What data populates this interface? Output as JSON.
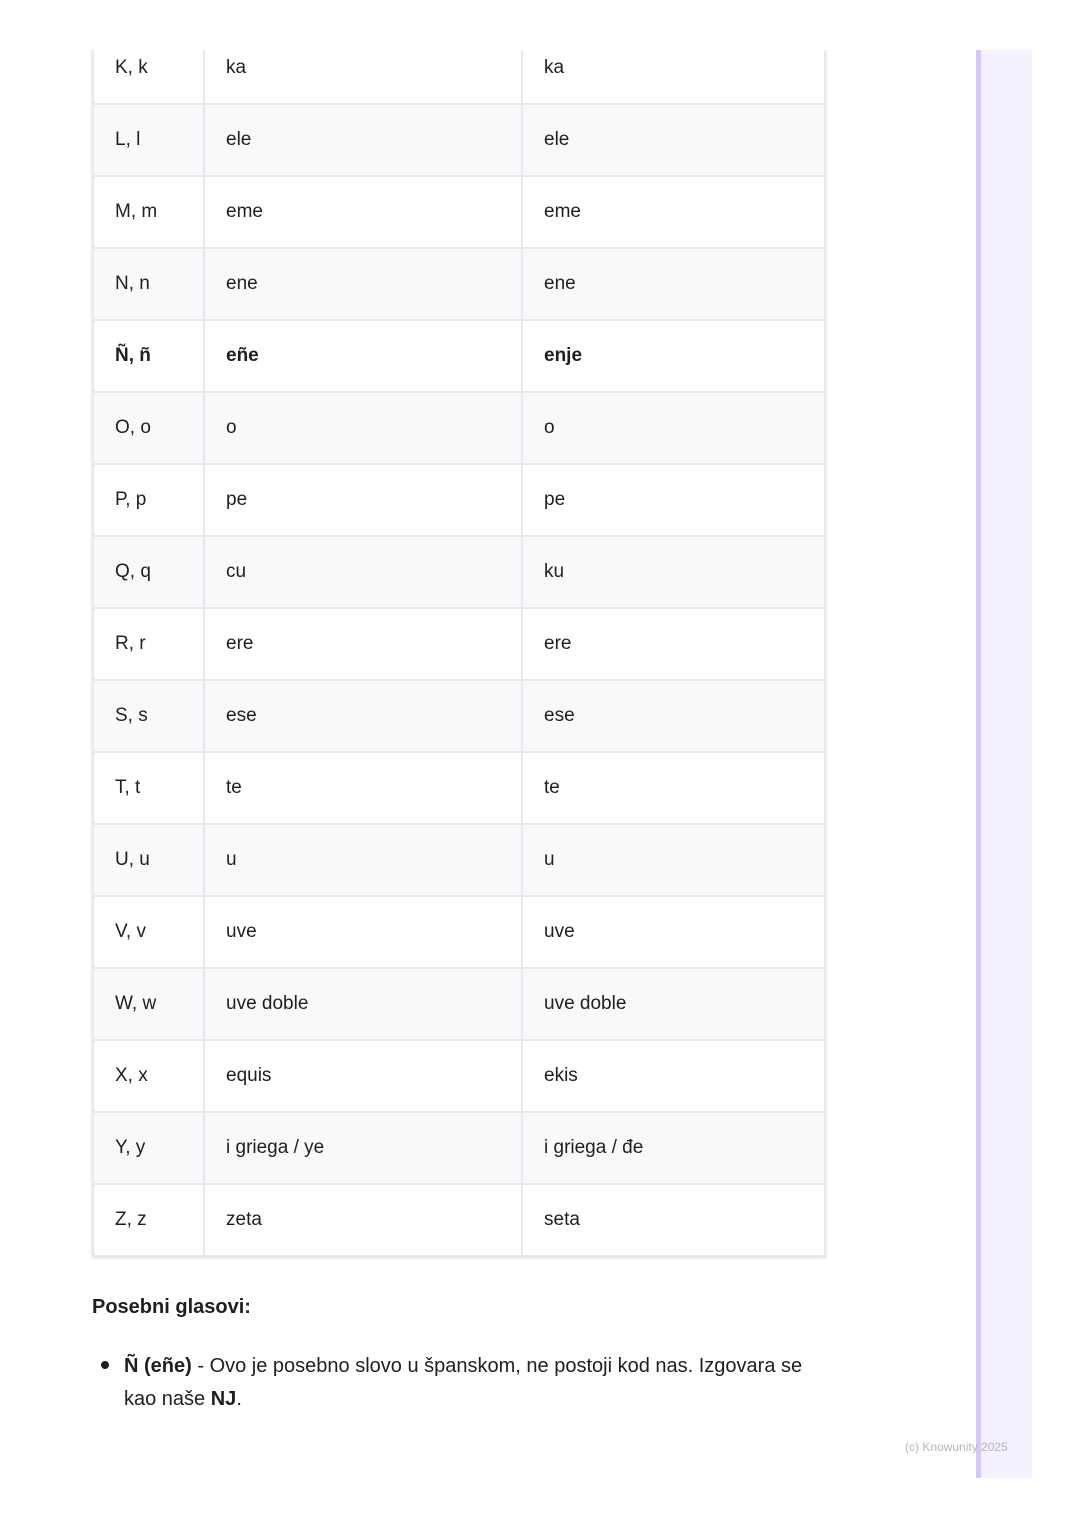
{
  "table": {
    "rows": [
      {
        "letter": "K, k",
        "name": "ka",
        "pron": "ka",
        "bold": false
      },
      {
        "letter": "L, l",
        "name": "ele",
        "pron": "ele",
        "bold": false
      },
      {
        "letter": "M, m",
        "name": "eme",
        "pron": "eme",
        "bold": false
      },
      {
        "letter": "N, n",
        "name": "ene",
        "pron": "ene",
        "bold": false
      },
      {
        "letter": "Ñ, ñ",
        "name": "eñe",
        "pron": "enje",
        "bold": true
      },
      {
        "letter": "O, o",
        "name": "o",
        "pron": "o",
        "bold": false
      },
      {
        "letter": "P, p",
        "name": "pe",
        "pron": "pe",
        "bold": false
      },
      {
        "letter": "Q, q",
        "name": "cu",
        "pron": "ku",
        "bold": false
      },
      {
        "letter": "R, r",
        "name": "ere",
        "pron": "ere",
        "bold": false
      },
      {
        "letter": "S, s",
        "name": "ese",
        "pron": "ese",
        "bold": false
      },
      {
        "letter": "T, t",
        "name": "te",
        "pron": "te",
        "bold": false
      },
      {
        "letter": "U, u",
        "name": "u",
        "pron": "u",
        "bold": false
      },
      {
        "letter": "V, v",
        "name": "uve",
        "pron": "uve",
        "bold": false
      },
      {
        "letter": "W, w",
        "name": "uve doble",
        "pron": "uve doble",
        "bold": false
      },
      {
        "letter": "X, x",
        "name": "equis",
        "pron": "ekis",
        "bold": false
      },
      {
        "letter": "Y, y",
        "name": "i griega / ye",
        "pron": "i griega / đe",
        "bold": false
      },
      {
        "letter": "Z, z",
        "name": "zeta",
        "pron": "seta",
        "bold": false
      }
    ]
  },
  "section": {
    "heading": "Posebni glasovi:",
    "bullet": {
      "term": "Ñ (eñe)",
      "text1": " - Ovo je posebno slovo u španskom, ne postoji kod nas. Izgovara se kao naše ",
      "strong": "NJ",
      "text2": "."
    }
  },
  "footer": {
    "copyright": "(c) Knowunity 2025"
  },
  "colors": {
    "sidebar": "#f4f0fe",
    "sidebar_border": "#d5c8f4",
    "row_alt": "#f8f9fb"
  }
}
